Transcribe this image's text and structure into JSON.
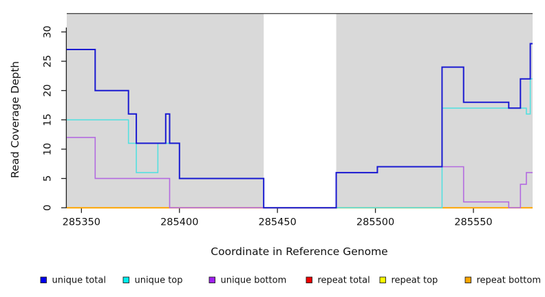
{
  "chart_data": {
    "type": "line",
    "step": "hv",
    "title": "",
    "xlabel": "Coordinate in Reference Genome",
    "ylabel": "Read Coverage Depth",
    "x_range": [
      285342.5,
      285580.2
    ],
    "y_range": [
      0,
      33.69
    ],
    "x_tick_values": [
      285350,
      285400,
      285450,
      285500,
      285550
    ],
    "x_tick_labels": [
      "285350",
      "285400",
      "285450",
      "285500",
      "285550"
    ],
    "y_tick_values": [
      0,
      5,
      10,
      15,
      20,
      25,
      30
    ],
    "y_tick_labels": [
      "0",
      "5",
      "10",
      "15",
      "20",
      "25",
      "30"
    ],
    "grid": false,
    "legend_position": "bottom",
    "plot_background_color": "#d9d9d9",
    "no_data_band_x": [
      285443,
      285480
    ],
    "shaded_regions": [
      [
        285342.5,
        285443
      ],
      [
        285480,
        285580.2
      ]
    ],
    "axis_color": "#1f1f1f",
    "box_top_color": "#4a4a4a",
    "series": [
      {
        "name": "unique total",
        "color": "#1a1ad1",
        "legend_color": "#0000ee",
        "width": 2.0,
        "points": [
          [
            285342.5,
            27
          ],
          [
            285357,
            20
          ],
          [
            285374,
            16
          ],
          [
            285378,
            11
          ],
          [
            285393,
            16
          ],
          [
            285395,
            11
          ],
          [
            285400,
            5
          ],
          [
            285443,
            0
          ],
          [
            285480,
            6
          ],
          [
            285501,
            7
          ],
          [
            285534,
            24
          ],
          [
            285545,
            18
          ],
          [
            285568,
            17
          ],
          [
            285574,
            22
          ],
          [
            285579,
            28
          ],
          [
            285580.2,
            28
          ]
        ]
      },
      {
        "name": "unique top",
        "color": "#55e0e0",
        "legend_color": "#00eeee",
        "width": 1.6,
        "points": [
          [
            285342.5,
            15
          ],
          [
            285374,
            11
          ],
          [
            285378,
            6
          ],
          [
            285389,
            11
          ],
          [
            285400,
            5
          ],
          [
            285443,
            0
          ],
          [
            285534,
            17
          ],
          [
            285577,
            16
          ],
          [
            285579,
            22
          ],
          [
            285580.2,
            22
          ]
        ]
      },
      {
        "name": "unique bottom",
        "color": "#b36ae0",
        "legend_color": "#a020f0",
        "width": 1.6,
        "points": [
          [
            285342.5,
            12
          ],
          [
            285357,
            5
          ],
          [
            285395,
            0
          ],
          [
            285480,
            6
          ],
          [
            285501,
            7
          ],
          [
            285545,
            1
          ],
          [
            285568,
            0
          ],
          [
            285574,
            4
          ],
          [
            285577,
            6
          ],
          [
            285580.2,
            6
          ]
        ]
      },
      {
        "name": "repeat total",
        "color": "#dd0000",
        "legend_color": "#ee0000",
        "width": 1.4,
        "points": [
          [
            285342.5,
            0
          ],
          [
            285580.2,
            0
          ]
        ]
      },
      {
        "name": "repeat top",
        "color": "#ffff00",
        "legend_color": "#ffff00",
        "width": 1.4,
        "points": [
          [
            285342.5,
            0
          ],
          [
            285580.2,
            0
          ]
        ]
      },
      {
        "name": "repeat bottom",
        "color": "#ffa500",
        "legend_color": "#ffa500",
        "width": 2.0,
        "points": [
          [
            285342.5,
            0
          ],
          [
            285580.2,
            0
          ]
        ]
      }
    ],
    "draw_order": [
      3,
      4,
      5,
      2,
      1,
      0
    ],
    "legend_labels": [
      "unique total",
      "unique top",
      "unique bottom",
      "repeat total",
      "repeat top",
      "repeat bottom"
    ]
  }
}
